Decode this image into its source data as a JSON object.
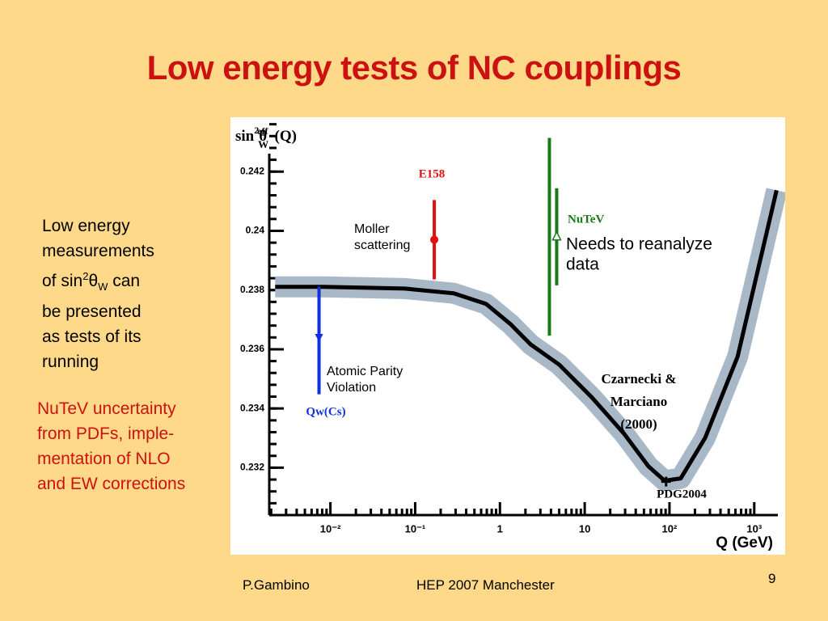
{
  "title": "Low energy tests of NC couplings",
  "left_text": {
    "lines": [
      "Low energy",
      "measurements"
    ],
    "line3": {
      "pre": "of sin",
      "sup": "2",
      "mid": "θ",
      "sub": "W",
      "post": " can"
    },
    "lines_after": [
      "be presented",
      "as tests of its",
      "running"
    ]
  },
  "red_text": [
    "NuTeV uncertainty",
    "from PDFs, imple-",
    "mentation of NLO",
    "and EW corrections"
  ],
  "footer": {
    "author": "P.Gambino",
    "event": "HEP 2007 Manchester",
    "page": "9"
  },
  "chart_data": {
    "type": "line",
    "y_title": {
      "base": "sin",
      "sup": "2",
      "theta": "θ",
      "sub": "W",
      "sup2": "eff",
      "arg": "(Q)"
    },
    "x_title": "Q (GeV)",
    "xlog": true,
    "xlim": [
      0.0019,
      1900
    ],
    "ylim": [
      0.2304,
      0.2437
    ],
    "xticks": [
      {
        "value": 0.01,
        "label": "10⁻²"
      },
      {
        "value": 0.1,
        "label": "10⁻¹"
      },
      1,
      10,
      {
        "value": 100,
        "label": "10²"
      },
      {
        "value": 1000,
        "label": "10³"
      }
    ],
    "yticks": [
      0.232,
      0.234,
      0.236,
      0.238,
      0.24,
      0.242
    ],
    "curve": {
      "name": "Czarnecki & Marciano (2000)",
      "label_lines": [
        "Czarnecki &",
        "Marciano",
        "(2000)"
      ],
      "color": "#000000",
      "band_color": "#A9B8C6",
      "x": [
        0.00223,
        0.00838,
        0.0759,
        0.285,
        0.687,
        1.33,
        2.31,
        5.0,
        12.1,
        29.1,
        56.4,
        87.6,
        136,
        264,
        637,
        1834
      ],
      "y": [
        0.23811,
        0.23811,
        0.23805,
        0.23789,
        0.23753,
        0.23685,
        0.23616,
        0.23548,
        0.23438,
        0.23315,
        0.23205,
        0.23156,
        0.23164,
        0.23301,
        0.23575,
        0.24137
      ]
    },
    "points": [
      {
        "name": "E158",
        "note": [
          "Moller",
          "scattering"
        ],
        "color": "#E01010",
        "q": 0.168,
        "value": 0.2397,
        "error": 0.00134
      },
      {
        "name": "Qw(Cs)",
        "note": [
          "Atomic Parity",
          "Violation"
        ],
        "color": "#1030E0",
        "q": 0.00734,
        "value": 0.2363,
        "error": 0.00182
      },
      {
        "name": "NuTeV",
        "note": [
          "Needs to reanalyze",
          "data"
        ],
        "color": "#1A7A1A",
        "q": 4.57,
        "value": 0.2398,
        "error": 0.00334,
        "inner_error": 0.00164
      },
      {
        "name": "PDG2004",
        "color": "#000000",
        "q": 91.2,
        "value": 0.23153,
        "error": 0.0001
      }
    ]
  }
}
